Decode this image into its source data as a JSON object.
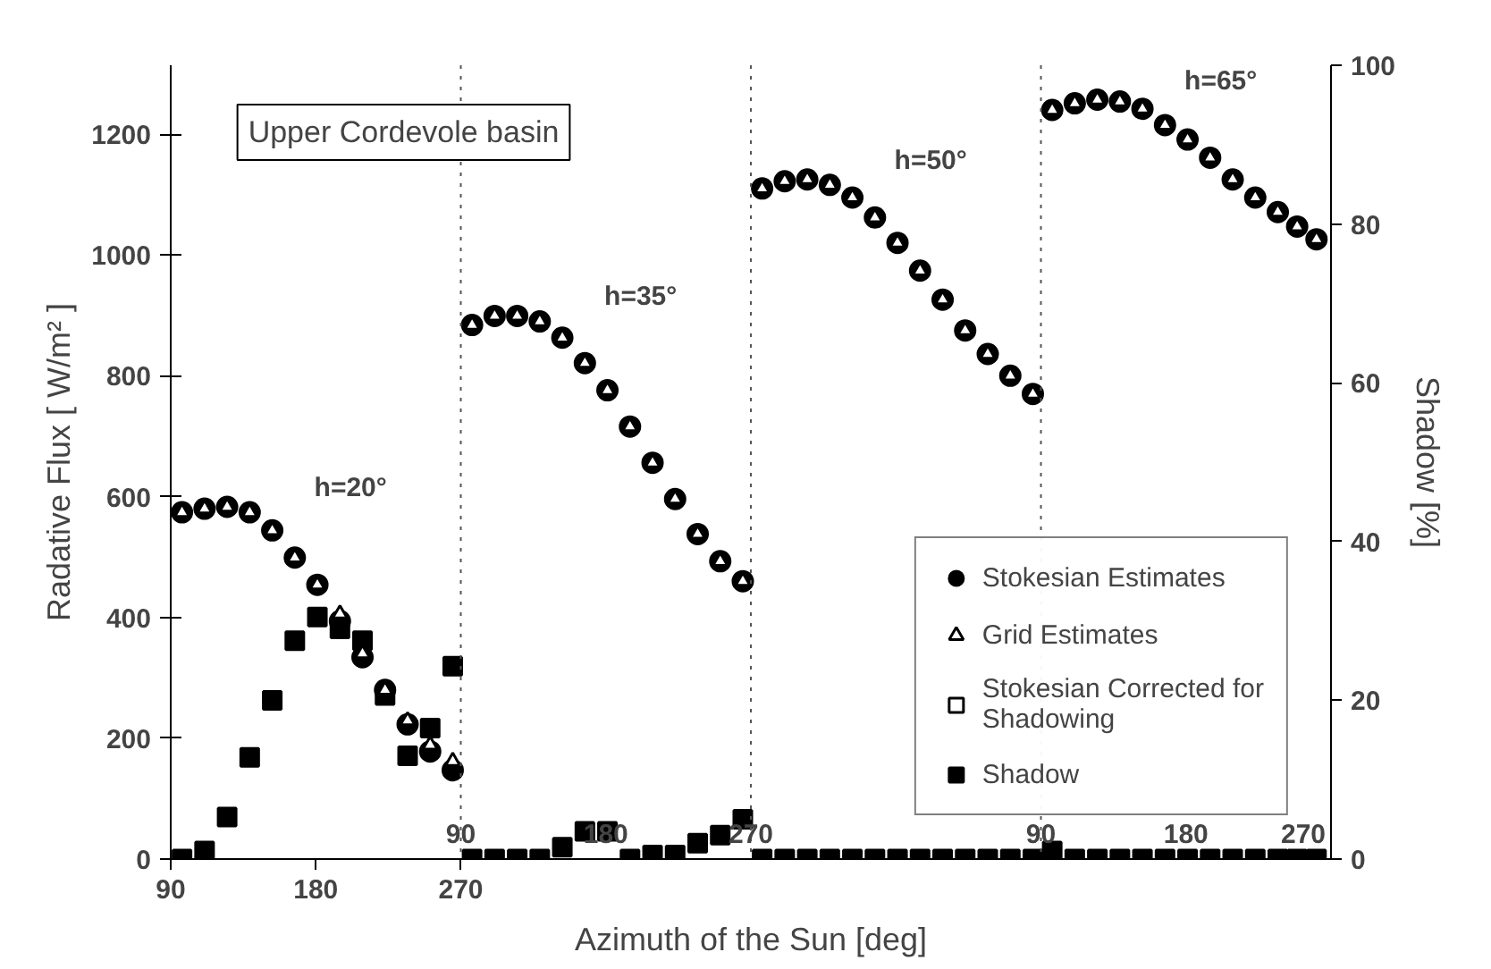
{
  "chart_data": {
    "type": "scatter",
    "xlabel": "Azimuth of the Sun [deg]",
    "ylabel": "Radative Flux [ W/m² ]",
    "y2label": "Shadow [%]",
    "annotations": [
      "Upper Cordevole basin",
      "h=20°",
      "h=35°",
      "h=50°",
      "h=65°",
      "90",
      "180",
      "270",
      "90",
      "180",
      "270",
      "90",
      "180",
      "270"
    ],
    "xlim": [
      90,
      810
    ],
    "ylim": [
      0,
      1314
    ],
    "y2lim": [
      0,
      100
    ],
    "xticks": [
      90,
      180,
      270
    ],
    "yticks": [
      0,
      200,
      400,
      600,
      800,
      1000,
      1200
    ],
    "y2ticks": [
      0,
      20,
      40,
      60,
      80,
      100
    ],
    "x": [
      97,
      111,
      125,
      139,
      153,
      167,
      181,
      195,
      209,
      223,
      237,
      251,
      265,
      277,
      291,
      305,
      319,
      333,
      347,
      361,
      375,
      389,
      403,
      417,
      431,
      445,
      457,
      471,
      485,
      499,
      513,
      527,
      541,
      555,
      569,
      583,
      597,
      611,
      625,
      637,
      651,
      665,
      679,
      693,
      707,
      721,
      735,
      749,
      763,
      777,
      789,
      801
    ],
    "series": [
      {
        "name": "Stokesian Estimates",
        "color": "#000000",
        "marker": "circle",
        "values": [
          574,
          580,
          583,
          574,
          544,
          499,
          454,
          394,
          334,
          280,
          223,
          178,
          147,
          884,
          899,
          899,
          890,
          863,
          821,
          776,
          716,
          656,
          596,
          538,
          493,
          460,
          1110,
          1122,
          1125,
          1116,
          1095,
          1062,
          1020,
          974,
          926,
          875,
          836,
          800,
          770,
          1240,
          1251,
          1257,
          1254,
          1242,
          1215,
          1191,
          1161,
          1125,
          1095,
          1071,
          1047,
          1026
        ]
      },
      {
        "name": "Grid Estimates",
        "color": "#000000",
        "marker": "triangle",
        "values": [
          574,
          580,
          583,
          574,
          544,
          499,
          454,
          406,
          340,
          280,
          229,
          189,
          162,
          884,
          899,
          899,
          890,
          863,
          821,
          776,
          716,
          656,
          596,
          538,
          493,
          460,
          1110,
          1122,
          1125,
          1116,
          1095,
          1062,
          1020,
          974,
          926,
          875,
          836,
          800,
          770,
          1240,
          1251,
          1257,
          1254,
          1242,
          1215,
          1191,
          1161,
          1125,
          1095,
          1071,
          1047,
          1026
        ]
      },
      {
        "name": "Stokesian Corrected for Shadowing",
        "color": "#000000",
        "marker": "square",
        "values": [
          null,
          null,
          null,
          null,
          null,
          null,
          null,
          null,
          null,
          null,
          null,
          null,
          null,
          null,
          null,
          null,
          null,
          null,
          null,
          null,
          null,
          null,
          null,
          null,
          null,
          null,
          null,
          null,
          null,
          null,
          null,
          null,
          null,
          null,
          null,
          null,
          null,
          null,
          null,
          null,
          null,
          null,
          null,
          null,
          null,
          null,
          null,
          null,
          null,
          null,
          null,
          null
        ]
      },
      {
        "name": "Shadow",
        "color": "#000000",
        "marker": "square",
        "axis": "y2",
        "values": [
          0,
          1,
          5.3,
          12.8,
          20,
          27.5,
          30.5,
          29,
          27.5,
          20.6,
          13,
          16.5,
          24.3,
          0,
          0,
          0,
          0,
          1.5,
          3.5,
          3.5,
          0,
          0.5,
          0.5,
          2,
          3,
          5,
          0,
          0,
          0,
          0,
          0,
          0,
          0,
          0,
          0,
          0,
          0,
          0,
          0,
          1,
          0,
          0,
          0,
          0,
          0,
          0,
          0,
          0,
          0,
          0,
          0,
          0
        ]
      }
    ],
    "ref_lines": [
      {
        "axis": "x",
        "value": 270,
        "line_style": "dotted",
        "color": "#555555"
      },
      {
        "axis": "x",
        "value": 450,
        "line_style": "dotted",
        "color": "#555555"
      },
      {
        "axis": "x",
        "value": 630,
        "line_style": "dotted",
        "color": "#555555"
      }
    ],
    "legend": "bottom right",
    "grid": false
  }
}
